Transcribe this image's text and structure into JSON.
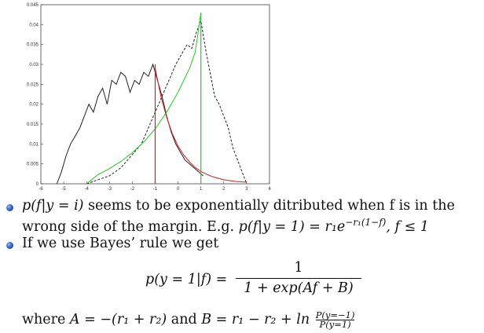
{
  "chart_data": {
    "type": "line",
    "xlim": [
      -6,
      4
    ],
    "ylim": [
      0,
      0.045
    ],
    "x_ticks": [
      "-6",
      "-5",
      "-4",
      "-3",
      "-2",
      "-1",
      "0",
      "1",
      "2",
      "3",
      "4"
    ],
    "y_ticks": [
      "0",
      "0.005",
      "0.01",
      "0.015",
      "0.02",
      "0.025",
      "0.03",
      "0.035",
      "0.04",
      "0.045"
    ],
    "series": [
      {
        "style": "solid",
        "color": "#222222",
        "x": [
          -5.3,
          -5.1,
          -4.9,
          -4.7,
          -4.5,
          -4.3,
          -4.1,
          -3.9,
          -3.7,
          -3.5,
          -3.3,
          -3.1,
          -2.9,
          -2.7,
          -2.5,
          -2.3,
          -2.1,
          -1.9,
          -1.7,
          -1.5,
          -1.3,
          -1.1,
          -0.9,
          -0.7,
          -0.5,
          -0.3,
          -0.1,
          0.1,
          0.3,
          0.5,
          0.7,
          0.9,
          1.1
        ],
        "y": [
          0.0,
          0.003,
          0.007,
          0.01,
          0.012,
          0.014,
          0.017,
          0.02,
          0.018,
          0.022,
          0.024,
          0.02,
          0.026,
          0.025,
          0.028,
          0.027,
          0.023,
          0.026,
          0.025,
          0.028,
          0.027,
          0.03,
          0.026,
          0.022,
          0.017,
          0.013,
          0.01,
          0.008,
          0.006,
          0.005,
          0.004,
          0.003,
          0.002
        ]
      },
      {
        "style": "dashed",
        "color": "#222222",
        "x": [
          -4.0,
          -3.5,
          -3.0,
          -2.5,
          -2.2,
          -1.9,
          -1.6,
          -1.3,
          -1.0,
          -0.7,
          -0.4,
          -0.1,
          0.2,
          0.4,
          0.6,
          0.8,
          1.0,
          1.2,
          1.4,
          1.6,
          1.8,
          2.0,
          2.2,
          2.4,
          2.6,
          2.8,
          3.0
        ],
        "y": [
          0.0,
          0.001,
          0.002,
          0.004,
          0.006,
          0.008,
          0.01,
          0.014,
          0.018,
          0.022,
          0.026,
          0.03,
          0.033,
          0.035,
          0.034,
          0.038,
          0.041,
          0.034,
          0.028,
          0.022,
          0.02,
          0.017,
          0.014,
          0.009,
          0.006,
          0.003,
          0.0
        ]
      },
      {
        "style": "solid",
        "color": "#d81b1b",
        "x": [
          -1.0,
          -0.75,
          -0.5,
          -0.25,
          0.0,
          0.25,
          0.5,
          0.75,
          1.0,
          1.25,
          1.5,
          1.75,
          2.0,
          2.25,
          2.5,
          2.75,
          3.0
        ],
        "y": [
          0.029,
          0.022,
          0.0167,
          0.0126,
          0.0095,
          0.0072,
          0.0055,
          0.0041,
          0.0031,
          0.0024,
          0.0018,
          0.0014,
          0.001,
          0.0008,
          0.0006,
          0.0005,
          0.0004
        ]
      },
      {
        "style": "solid",
        "color": "#22cc22",
        "x": [
          -4.0,
          -3.5,
          -3.0,
          -2.5,
          -2.0,
          -1.5,
          -1.0,
          -0.5,
          0.0,
          0.5,
          0.75,
          1.0
        ],
        "y": [
          0.0,
          0.0023,
          0.0038,
          0.0056,
          0.0078,
          0.0105,
          0.0138,
          0.018,
          0.023,
          0.029,
          0.033,
          0.043
        ]
      }
    ],
    "vertical_lines": [
      {
        "x": -1,
        "y_top": 0.03,
        "color": "#d81b1b"
      },
      {
        "x": 1,
        "y_top": 0.043,
        "color": "#22cc22"
      }
    ]
  },
  "text": {
    "b1_line1_math": "p(f|y = i)",
    "b1_line1_rest": " seems to be exponentially ditributed when f is in the",
    "b1_line2_pre": "wrong side of the margin. E.g. ",
    "b1_line2_math": "p(f|y = 1) = r₁e",
    "b1_line2_exp": "−r₁(1−f)",
    "b1_line2_tail": ",  f ≤ 1",
    "b2": "If we use Bayes’ rule we get",
    "eq_lhs": "p(y = 1|f) =",
    "eq_num": "1",
    "eq_den": "1 + exp(Af + B)",
    "where_pre": "where ",
    "where_math": "A = −(r₁ + r₂)",
    "where_and": " and ",
    "where_math2": "B = r₁ − r₂ + ln",
    "ln_num": "P(y=−1)",
    "ln_den": "P(y=1)"
  },
  "colors": {
    "bullet": "#3a63c8",
    "red": "#d81b1b",
    "green": "#22cc22"
  }
}
